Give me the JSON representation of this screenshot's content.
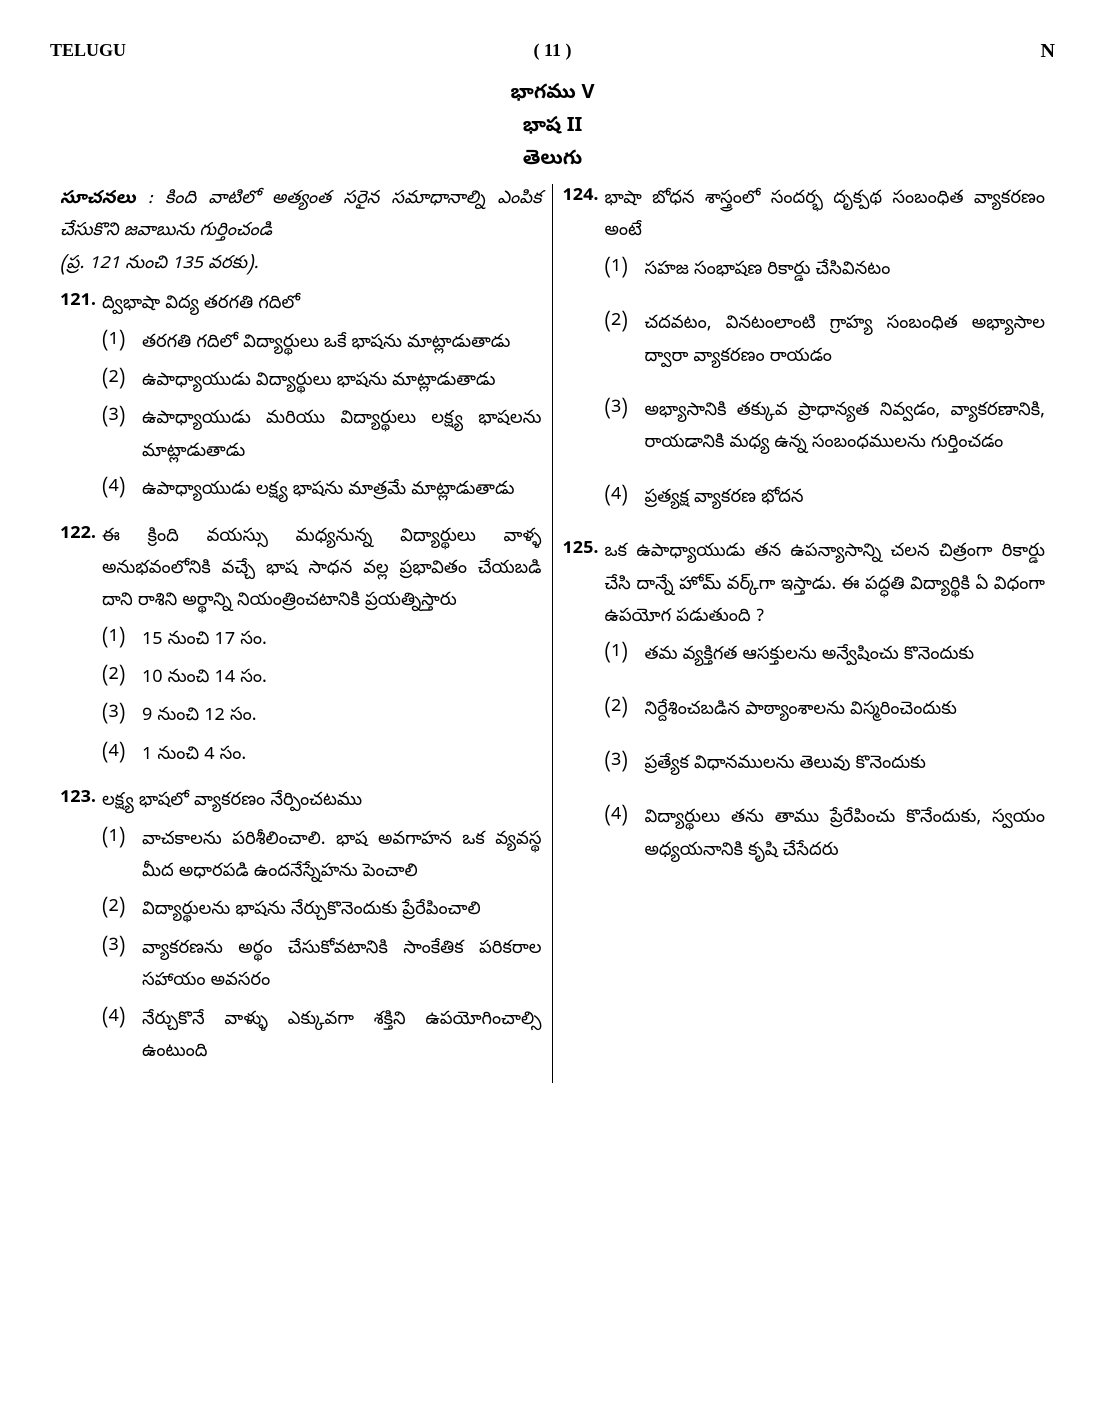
{
  "header": {
    "subject": "TELUGU",
    "page": "( 11 )",
    "code": "N"
  },
  "section": {
    "part": "భాగము V",
    "lang": "భాష II",
    "name": "తెలుగు"
  },
  "instructions": {
    "label": "సూచనలు",
    "colon": ":",
    "body": "కింది వాటిలో అత్యంత సరైన సమాధానాల్ని ఎంపిక చేసుకొని జవాబును గుర్తించండి",
    "range": "(ప్ర. 121 నుంచి 135 వరకు)."
  },
  "left": [
    {
      "num": "121.",
      "text": "ద్విభాషా విద్య తరగతి గదిలో",
      "opts": [
        {
          "n": "(1)",
          "t": "తరగతి గదిలో విద్యార్థులు ఒకే భాషను మాట్లాడుతాడు"
        },
        {
          "n": "(2)",
          "t": "ఉపాధ్యాయుడు విద్యార్థులు భాషను మాట్లాడుతాడు"
        },
        {
          "n": "(3)",
          "t": "ఉపాధ్యాయుడు మరియు విద్యార్థులు లక్ష్య భాషలను మాట్లాడుతాడు"
        },
        {
          "n": "(4)",
          "t": "ఉపాధ్యాయుడు లక్ష్య భాషను మాత్రమే మాట్లాడుతాడు"
        }
      ]
    },
    {
      "num": "122.",
      "text": "ఈ క్రింది వయస్సు మధ్యనున్న విద్యార్థులు వాళ్ళ అనుభవంలోనికి వచ్చే భాష సాధన వల్ల ప్రభావితం చేయబడి దాని రాశిని అర్థాన్ని నియంత్రించటానికి ప్రయత్నిస్తారు",
      "opts": [
        {
          "n": "(1)",
          "t": "15 నుంచి 17 సం."
        },
        {
          "n": "(2)",
          "t": "10 నుంచి 14 సం."
        },
        {
          "n": "(3)",
          "t": "9 నుంచి 12 సం."
        },
        {
          "n": "(4)",
          "t": "1 నుంచి 4 సం."
        }
      ]
    },
    {
      "num": "123.",
      "text": "లక్ష్య భాషలో వ్యాకరణం నేర్పించటము",
      "opts": [
        {
          "n": "(1)",
          "t": "వాచకాలను పరిశీలించాలి. భాష అవగాహన ఒక వ్యవస్థ మీద అధారపడి ఉందనేస్నేహను పెంచాలి"
        },
        {
          "n": "(2)",
          "t": "విద్యార్థులను భాషను నేర్చుకొనెందుకు ప్రేరేపించాలి"
        },
        {
          "n": "(3)",
          "t": "వ్యాకరణను అర్థం చేసుకోవటానికి సాంకేతిక పరికరాల సహాయం అవసరం"
        },
        {
          "n": "(4)",
          "t": "నేర్చుకొనే వాళ్ళు ఎక్కువగా శక్తిని ఉపయోగించాల్సి ఉంటుంది"
        }
      ]
    }
  ],
  "right": [
    {
      "num": "124.",
      "text": "భాషా బోధన శాస్త్రంలో సందర్భ దృక్పథ సంబంధిత వ్యాకరణం అంటే",
      "spaced": true,
      "opts": [
        {
          "n": "(1)",
          "t": "సహజ సంభాషణ రికార్డు చేసివినటం"
        },
        {
          "n": "(2)",
          "t": "చదవటం, వినటంలాంటి గ్రాహ్య సంబంధిత అభ్యాసాల ద్వారా వ్యాకరణం రాయడం"
        },
        {
          "n": "(3)",
          "t": "అభ్యాసానికి తక్కువ ప్రాధాన్యత నివ్వడం, వ్యాకరణానికి, రాయడానికి మధ్య ఉన్న సంబంధములను గుర్తించడం"
        },
        {
          "n": "(4)",
          "t": "ప్రత్యక్ష వ్యాకరణ భోదన"
        }
      ]
    },
    {
      "num": "125.",
      "text": "ఒక ఉపాధ్యాయుడు తన ఉపన్యాసాన్ని చలన చిత్రంగా రికార్డు చేసి దాన్నే హోమ్ వర్క్‌గా ఇస్తాడు. ఈ పద్ధతి విద్యార్థికి ఏ విధంగా ఉపయోగ పడుతుంది ?",
      "spaced": true,
      "opts": [
        {
          "n": "(1)",
          "t": "తమ వ్యక్తిగత ఆసక్తులను అన్వేషించు కొనెందుకు"
        },
        {
          "n": "(2)",
          "t": "నిర్దేశించబడిన పాఠ్యాంశాలను విస్మరించెందుకు"
        },
        {
          "n": "(3)",
          "t": "ప్రత్యేక విధానములను తెలువు కొనెందుకు"
        },
        {
          "n": "(4)",
          "t": "విద్యార్థులు తను తాము ప్రేరేపించు కొనేందుకు, స్వయం అధ్యయనానికి కృషి చేసేదరు"
        }
      ]
    }
  ]
}
